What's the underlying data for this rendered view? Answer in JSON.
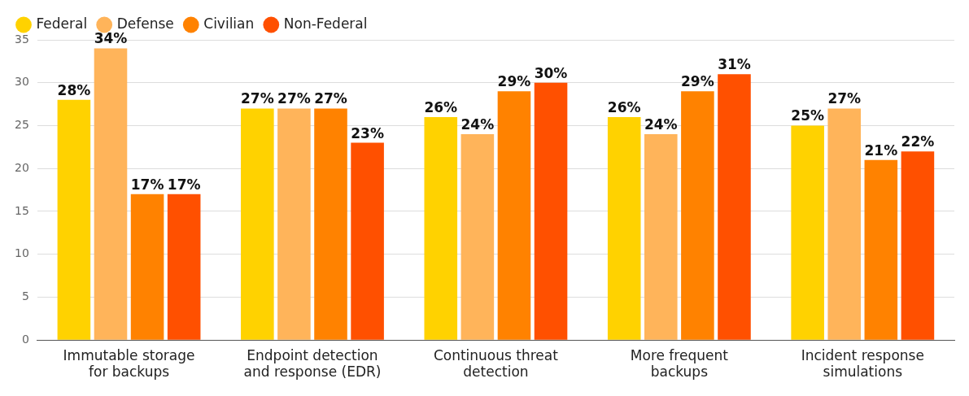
{
  "chart_data": {
    "type": "bar",
    "categories": [
      "Immutable storage for backups",
      "Endpoint detection and response (EDR)",
      "Continuous threat detection",
      "More frequent backups",
      "Incident response simulations"
    ],
    "series": [
      {
        "name": "Federal",
        "color": "#ffd200",
        "values": [
          28,
          27,
          26,
          26,
          25
        ],
        "value_labels": [
          "28%",
          "27%",
          "26%",
          "26%",
          "25%"
        ]
      },
      {
        "name": "Defense",
        "color": "#ffb45a",
        "values": [
          34,
          27,
          24,
          24,
          27
        ],
        "value_labels": [
          "34%",
          "27%",
          "24%",
          "24%",
          "27%"
        ]
      },
      {
        "name": "Civilian",
        "color": "#ff8200",
        "values": [
          17,
          27,
          29,
          29,
          21
        ],
        "value_labels": [
          "17%",
          "27%",
          "29%",
          "29%",
          "21%"
        ]
      },
      {
        "name": "Non-Federal",
        "color": "#ff5000",
        "values": [
          17,
          23,
          30,
          31,
          22
        ],
        "value_labels": [
          "17%",
          "23%",
          "30%",
          "31%",
          "22%"
        ]
      }
    ],
    "ylim": [
      0,
      35
    ],
    "yticks": [
      0,
      5,
      10,
      15,
      20,
      25,
      30,
      35
    ],
    "grid": "y",
    "legend": "top left"
  }
}
